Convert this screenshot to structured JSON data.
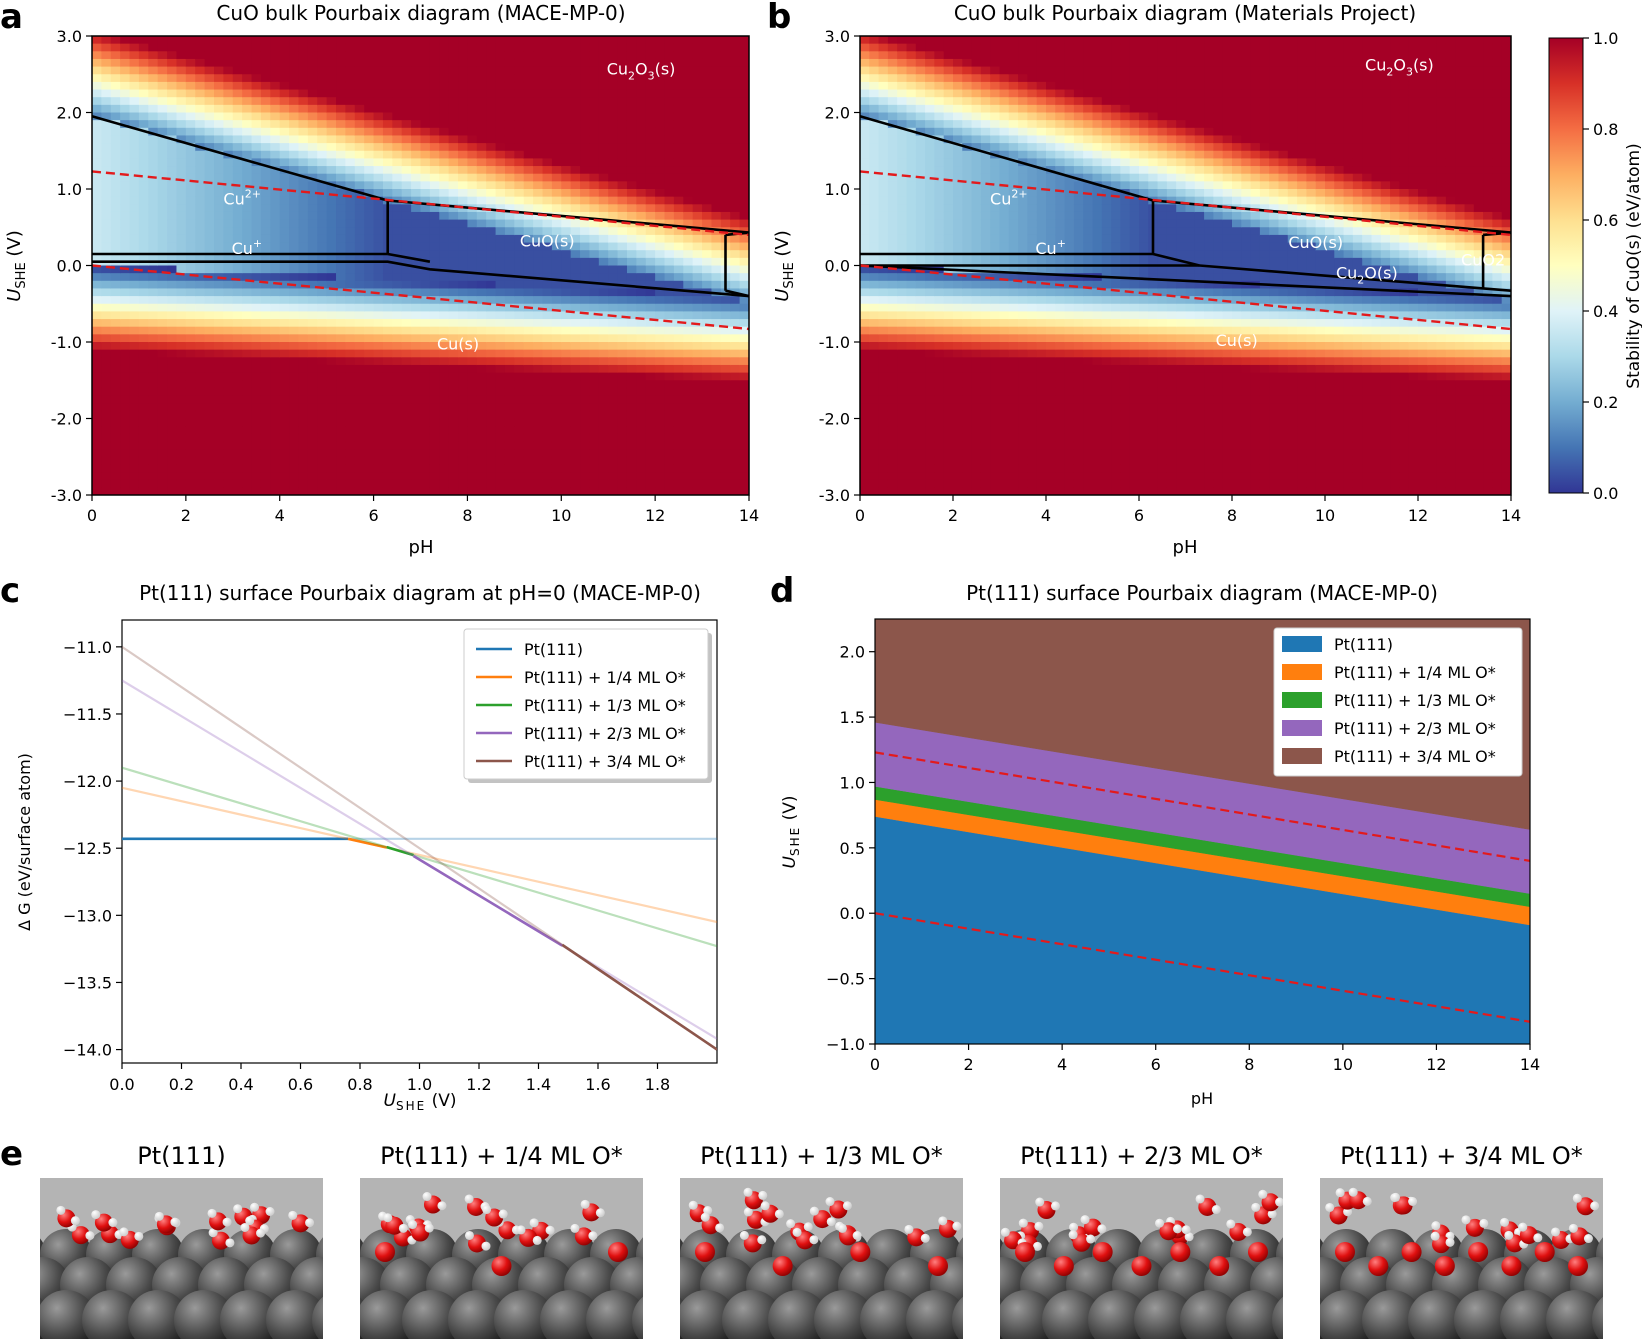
{
  "panel_letters": {
    "a": "a",
    "b": "b",
    "c": "c",
    "d": "d",
    "e": "e"
  },
  "colors": {
    "pt111": "#1f77b4",
    "q14": "#ff7f0e",
    "q13": "#2ca02c",
    "q23": "#9467bd",
    "q34": "#8c564b",
    "red_dash": "#e31a1c"
  },
  "chart_data": [
    {
      "id": "a",
      "type": "heatmap",
      "title": "CuO bulk Pourbaix diagram (MACE-MP-0)",
      "xlabel": "pH",
      "ylabel": "U",
      "ylabel_sub": "SHE",
      "ylabel_unit": " (V)",
      "xlim": [
        0,
        14
      ],
      "ylim": [
        -3,
        3
      ],
      "xticks": [
        "0",
        "2",
        "4",
        "6",
        "8",
        "10",
        "12",
        "14"
      ],
      "yticks": [
        "-3.0",
        "-2.0",
        "-1.0",
        "0.0",
        "1.0",
        "2.0",
        "3.0"
      ],
      "regions": [
        {
          "base": "Cu",
          "sup": "2+",
          "x": 3.2,
          "y": 0.8
        },
        {
          "base": "Cu",
          "sup": "+",
          "x": 3.3,
          "y": 0.15
        },
        {
          "base": "CuO(s)",
          "sup": "",
          "x": 9.7,
          "y": 0.25
        },
        {
          "base": "Cu(s)",
          "sup": "",
          "x": 7.8,
          "y": -1.1
        },
        {
          "base": "Cu2O3(s)",
          "sup": "",
          "x": 11.7,
          "y": 2.5
        }
      ],
      "boundaries": [
        [
          [
            0,
            1.95
          ],
          [
            6.3,
            0.85
          ]
        ],
        [
          [
            6.3,
            0.85
          ],
          [
            14,
            0.43
          ]
        ],
        [
          [
            0,
            0.15
          ],
          [
            6.3,
            0.15
          ]
        ],
        [
          [
            0,
            0.05
          ],
          [
            6.3,
            0.05
          ],
          [
            7.2,
            -0.05
          ],
          [
            14,
            -0.4
          ]
        ],
        [
          [
            6.3,
            0.85
          ],
          [
            6.3,
            0.15
          ]
        ],
        [
          [
            6.3,
            0.15
          ],
          [
            7.2,
            0.05
          ]
        ],
        [
          [
            13.5,
            0.4
          ],
          [
            13.5,
            -0.33
          ]
        ],
        [
          [
            13.5,
            0.4
          ],
          [
            14,
            0.43
          ]
        ],
        [
          [
            13.5,
            -0.33
          ],
          [
            14,
            -0.4
          ]
        ]
      ]
    },
    {
      "id": "b",
      "type": "heatmap",
      "title": "CuO bulk Pourbaix diagram (Materials Project)",
      "xlabel": "pH",
      "ylabel": "U",
      "ylabel_sub": "SHE",
      "ylabel_unit": " (V)",
      "xlim": [
        0,
        14
      ],
      "ylim": [
        -3,
        3
      ],
      "xticks": [
        "0",
        "2",
        "4",
        "6",
        "8",
        "10",
        "12",
        "14"
      ],
      "yticks": [
        "-3.0",
        "-2.0",
        "-1.0",
        "0.0",
        "1.0",
        "2.0",
        "3.0"
      ],
      "colorbar_label": "Stability of CuO(s) (eV/atom)",
      "colorbar_ticks": [
        "0.0",
        "0.2",
        "0.4",
        "0.6",
        "0.8",
        "1.0"
      ],
      "regions": [
        {
          "base": "Cu",
          "sup": "2+",
          "x": 3.2,
          "y": 0.8
        },
        {
          "base": "Cu",
          "sup": "+",
          "x": 4.1,
          "y": 0.15
        },
        {
          "base": "CuO(s)",
          "sup": "",
          "x": 9.8,
          "y": 0.23
        },
        {
          "base": "Cu2O(s)",
          "sup": "",
          "x": 10.9,
          "y": -0.17
        },
        {
          "base": "CuO2",
          "sup": "",
          "x": 13.4,
          "y": 0.0
        },
        {
          "base": "Cu(s)",
          "sup": "",
          "x": 8.1,
          "y": -1.05
        },
        {
          "base": "Cu2O3(s)",
          "sup": "",
          "x": 11.6,
          "y": 2.55
        }
      ],
      "boundaries": [
        [
          [
            0,
            1.95
          ],
          [
            6.3,
            0.85
          ]
        ],
        [
          [
            6.3,
            0.85
          ],
          [
            14,
            0.43
          ]
        ],
        [
          [
            0,
            0.15
          ],
          [
            6.3,
            0.15
          ]
        ],
        [
          [
            0,
            0.0
          ],
          [
            7.3,
            0.0
          ]
        ],
        [
          [
            6.3,
            0.85
          ],
          [
            6.3,
            0.15
          ]
        ],
        [
          [
            6.3,
            0.15
          ],
          [
            7.3,
            0.0
          ]
        ],
        [
          [
            7.3,
            0.0
          ],
          [
            14,
            -0.33
          ]
        ],
        [
          [
            0,
            0.0
          ],
          [
            14,
            -0.4
          ]
        ],
        [
          [
            13.4,
            0.4
          ],
          [
            13.4,
            -0.3
          ]
        ],
        [
          [
            13.4,
            0.4
          ],
          [
            14,
            0.43
          ]
        ]
      ]
    },
    {
      "id": "c",
      "type": "line",
      "title": "Pt(111) surface Pourbaix diagram at pH=0 (MACE-MP-0)",
      "xlabel": "U",
      "xlabel_sub": "SHE",
      "xlabel_unit": " (V)",
      "ylabel": "Δ G (eV/surface atom)",
      "xlim": [
        0,
        2.0
      ],
      "ylim": [
        -14.1,
        -10.8
      ],
      "xticks": [
        "0.0",
        "0.2",
        "0.4",
        "0.6",
        "0.8",
        "1.0",
        "1.2",
        "1.4",
        "1.6",
        "1.8"
      ],
      "yticks": [
        "−11.0",
        "−11.5",
        "−12.0",
        "−12.5",
        "−13.0",
        "−13.5",
        "−14.0"
      ],
      "legend": "top-right",
      "series": [
        {
          "name": "Pt(111)",
          "y0": -12.43,
          "y1": -12.43,
          "lo": 0.0,
          "hi": 0.76
        },
        {
          "name": "Pt(111) + 1/4 ML O*",
          "y0": -12.05,
          "y1": -13.05,
          "lo": 0.76,
          "hi": 0.89
        },
        {
          "name": "Pt(111) + 1/3 ML O*",
          "y0": -11.9,
          "y1": -13.23,
          "lo": 0.89,
          "hi": 0.98
        },
        {
          "name": "Pt(111) + 2/3 ML O*",
          "y0": -11.25,
          "y1": -13.92,
          "lo": 0.98,
          "hi": 1.48
        },
        {
          "name": "Pt(111) + 3/4 ML O*",
          "y0": -11.0,
          "y1": -14.0,
          "lo": 1.48,
          "hi": 2.0
        }
      ]
    },
    {
      "id": "d",
      "type": "area",
      "title": "Pt(111) surface Pourbaix diagram (MACE-MP-0)",
      "xlabel": "pH",
      "ylabel": "U",
      "ylabel_sub": "SHE",
      "ylabel_unit": " (V)",
      "xlim": [
        0,
        14
      ],
      "ylim": [
        -1.0,
        2.25
      ],
      "xticks": [
        "0",
        "2",
        "4",
        "6",
        "8",
        "10",
        "12",
        "14"
      ],
      "yticks": [
        "−1.0",
        "−0.5",
        "0.0",
        "0.5",
        "1.0",
        "1.5",
        "2.0"
      ],
      "legend": "top-right",
      "bands": [
        {
          "name": "Pt(111)",
          "top0": 0.74,
          "top14": -0.09
        },
        {
          "name": "Pt(111) + 1/4 ML O*",
          "top0": 0.87,
          "top14": 0.05
        },
        {
          "name": "Pt(111) + 1/3 ML O*",
          "top0": 0.97,
          "top14": 0.15
        },
        {
          "name": "Pt(111) + 2/3 ML O*",
          "top0": 1.46,
          "top14": 0.64
        },
        {
          "name": "Pt(111) + 3/4 ML O*",
          "top0": 2.25,
          "top14": 2.25
        }
      ],
      "dashed": [
        [
          0.0,
          -0.83
        ],
        [
          1.23,
          0.4
        ]
      ]
    }
  ],
  "panel_e": {
    "labels": [
      "Pt(111)",
      "Pt(111) + 1/4 ML O*",
      "Pt(111) + 1/3 ML O*",
      "Pt(111) + 2/3 ML O*",
      "Pt(111) + 3/4 ML O*"
    ],
    "adsorbed_o": [
      0,
      3,
      4,
      7,
      8
    ]
  }
}
